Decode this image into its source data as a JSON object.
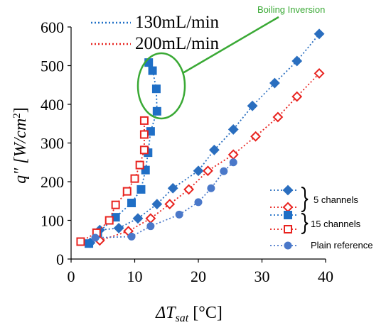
{
  "chart_data": {
    "type": "scatter",
    "title": "",
    "xlabel": "ΔT",
    "xlabel_sub": "sat",
    "xlabel_unit": " [°C]",
    "ylabel": "q\" [W/cm",
    "ylabel_sup": "2",
    "ylabel_end": "]",
    "xlim": [
      0,
      40
    ],
    "ylim": [
      0,
      600
    ],
    "xticks": [
      "0",
      "10",
      "20",
      "30",
      "40"
    ],
    "yticks": [
      "0",
      "100",
      "200",
      "300",
      "400",
      "500",
      "600"
    ],
    "grid": false,
    "flow_legend": [
      {
        "label": "130mL/min",
        "color": "#1f6fc6"
      },
      {
        "label": "200mL/min",
        "color": "#e8231f"
      }
    ],
    "legend": [
      {
        "label": "5 channels",
        "markers": [
          "diamond-filled",
          "diamond-open"
        ]
      },
      {
        "label": "15 channels",
        "markers": [
          "square-filled",
          "square-open"
        ]
      },
      {
        "label": "Plain reference",
        "markers": [
          "circle-filled"
        ]
      }
    ],
    "annotation": {
      "text": "Boiling Inversion",
      "color": "#3aa935"
    },
    "series": [
      {
        "marker": "diamond-filled",
        "color": "#2a6ebf",
        "points": [
          [
            3,
            42
          ],
          [
            4.5,
            75
          ],
          [
            7.5,
            80
          ],
          [
            10.5,
            105
          ],
          [
            13.5,
            142
          ],
          [
            16,
            183
          ],
          [
            20,
            228
          ],
          [
            22.5,
            282
          ],
          [
            25.5,
            335
          ],
          [
            28.5,
            396
          ],
          [
            32,
            455
          ],
          [
            35.5,
            512
          ],
          [
            39,
            582
          ]
        ]
      },
      {
        "marker": "diamond-open",
        "color": "#e8231f",
        "points": [
          [
            4.5,
            48
          ],
          [
            9,
            72
          ],
          [
            12.5,
            105
          ],
          [
            15.5,
            142
          ],
          [
            18.5,
            180
          ],
          [
            21.5,
            228
          ],
          [
            25.5,
            270
          ],
          [
            29,
            317
          ],
          [
            32.5,
            367
          ],
          [
            35.5,
            420
          ],
          [
            39,
            480
          ]
        ]
      },
      {
        "marker": "square-filled",
        "color": "#1f6fc6",
        "points": [
          [
            2.8,
            40
          ],
          [
            4.2,
            68
          ],
          [
            7,
            108
          ],
          [
            9.5,
            145
          ],
          [
            11,
            180
          ],
          [
            11.7,
            230
          ],
          [
            12.1,
            275
          ],
          [
            12.5,
            330
          ],
          [
            13.5,
            382
          ],
          [
            13.4,
            440
          ],
          [
            12.8,
            487
          ],
          [
            12.2,
            508
          ]
        ]
      },
      {
        "marker": "square-open",
        "color": "#e8231f",
        "points": [
          [
            1.5,
            45
          ],
          [
            4,
            68
          ],
          [
            6,
            100
          ],
          [
            7,
            140
          ],
          [
            8.8,
            175
          ],
          [
            10,
            208
          ],
          [
            10.8,
            243
          ],
          [
            11.5,
            282
          ],
          [
            11.5,
            322
          ],
          [
            11.5,
            358
          ]
        ]
      },
      {
        "marker": "circle-filled",
        "color": "#4a78c9",
        "points": [
          [
            3.8,
            55
          ],
          [
            9.5,
            58
          ],
          [
            12.5,
            85
          ],
          [
            17,
            115
          ],
          [
            20,
            147
          ],
          [
            22,
            183
          ],
          [
            24,
            227
          ],
          [
            25.5,
            250
          ]
        ]
      }
    ]
  }
}
